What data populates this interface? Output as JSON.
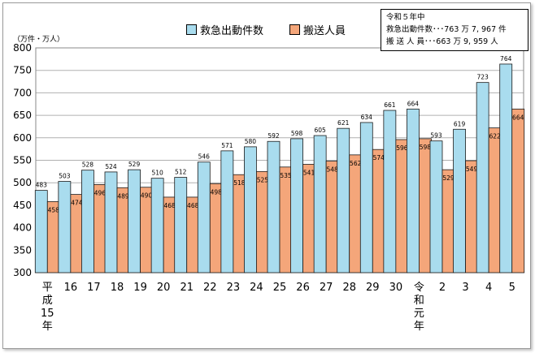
{
  "note": {
    "title": "令和５年中",
    "line1": "救急出動件数･･･763 万 7, 967 件",
    "line2": "搬 送 人 員･･･663 万 9, 959 人"
  },
  "colors": {
    "dispatch": "#a9dcee",
    "transport": "#f4a67a",
    "grid": "#b0b0b0"
  },
  "chart_data": {
    "type": "bar",
    "unit_label": "（万件・万人）",
    "categories": [
      "平成15年",
      "16",
      "17",
      "18",
      "19",
      "20",
      "21",
      "22",
      "23",
      "24",
      "25",
      "26",
      "27",
      "28",
      "29",
      "30",
      "令和元年",
      "2",
      "3",
      "4",
      "5"
    ],
    "ylim": [
      300,
      800
    ],
    "yticks": [
      300,
      350,
      400,
      450,
      500,
      550,
      600,
      650,
      700,
      750,
      800
    ],
    "grid": true,
    "legend_position": "top",
    "series": [
      {
        "name": "救急出動件数",
        "values": [
          483,
          503,
          528,
          524,
          529,
          510,
          512,
          546,
          571,
          580,
          592,
          598,
          605,
          621,
          634,
          661,
          664,
          593,
          619,
          723,
          764
        ]
      },
      {
        "name": "搬送人員",
        "values": [
          458,
          474,
          496,
          489,
          490,
          468,
          468,
          498,
          518,
          525,
          535,
          541,
          548,
          562,
          574,
          596,
          598,
          529,
          549,
          622,
          664
        ]
      }
    ]
  }
}
